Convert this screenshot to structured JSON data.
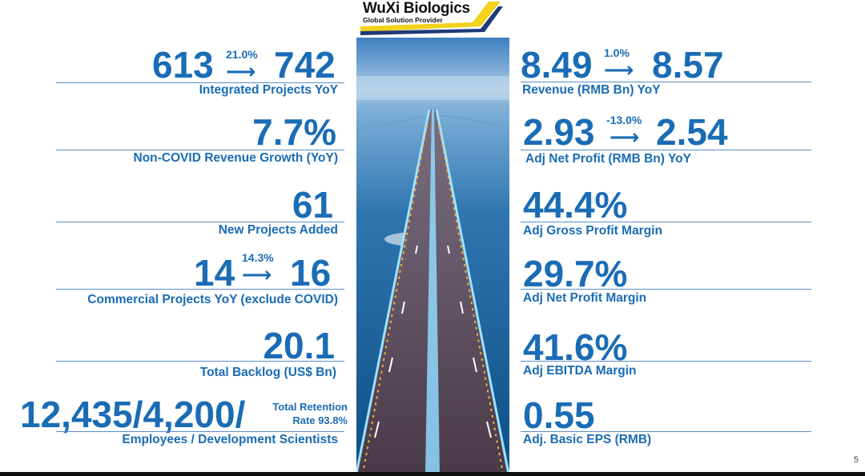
{
  "logo": {
    "name": "WuXi Biologics",
    "tagline": "Global Solution Provider"
  },
  "left_stats": [
    {
      "from": "613",
      "pct": "21.0%",
      "to": "742",
      "label": "Integrated Projects YoY"
    },
    {
      "value": "7.7%",
      "label": "Non-COVID Revenue Growth (YoY)"
    },
    {
      "value": "61",
      "label": "New Projects Added"
    },
    {
      "from": "14",
      "pct": "14.3%",
      "to": "16",
      "label": "Commercial Projects YoY (exclude COVID)"
    },
    {
      "value": "20.1",
      "label": "Total Backlog (US$ Bn)"
    },
    {
      "value": "12,435/4,200/",
      "note_line1": "Total Retention",
      "note_line2": "Rate 93.8%",
      "label": "Employees / Development Scientists"
    }
  ],
  "right_stats": [
    {
      "from": "8.49",
      "pct": "1.0%",
      "to": "8.57",
      "label": "Revenue (RMB Bn) YoY"
    },
    {
      "from": "2.93",
      "pct": "-13.0%",
      "to": "2.54",
      "label": "Adj Net Profit (RMB Bn) YoY"
    },
    {
      "value": "44.4%",
      "label": "Adj Gross Profit Margin"
    },
    {
      "value": "29.7%",
      "label": "Adj Net Profit Margin"
    },
    {
      "value": "41.6%",
      "label": "Adj EBITDA Margin"
    },
    {
      "value": "0.55",
      "label": "Adj. Basic EPS (RMB)"
    }
  ],
  "arrow_glyph": "⟶",
  "page_number": "5",
  "colors": {
    "accent": "#1a6cb5",
    "rule": "#5b8fc8",
    "logo_yellow": "#f2d21b",
    "logo_navy": "#1f3a78"
  }
}
